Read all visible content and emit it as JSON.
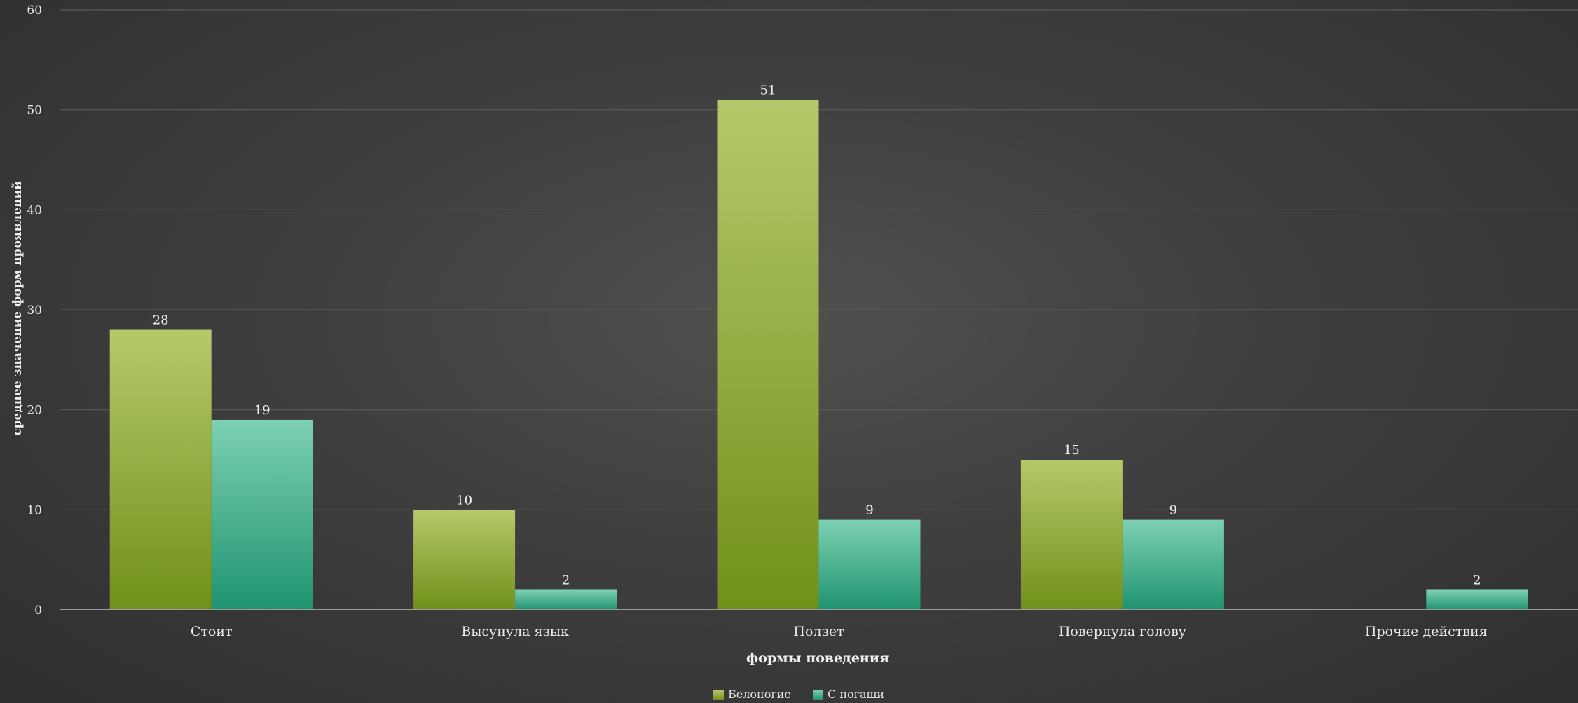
{
  "chart_data": {
    "type": "bar",
    "title": "",
    "xlabel": "формы поведения",
    "ylabel": "среднее значение форм проявлений",
    "categories": [
      "Стоит",
      "Высунула язык",
      "Ползет",
      "Повернула голову",
      "Прочие действия"
    ],
    "series": [
      {
        "name": "Белоногие",
        "values": [
          28,
          10,
          51,
          15,
          null
        ],
        "color": "#8aa428"
      },
      {
        "name": "С погаши",
        "values": [
          19,
          2,
          9,
          9,
          2
        ],
        "color": "#2fa882"
      }
    ],
    "data_labels": [
      [
        "28",
        "10",
        "51",
        "15",
        ""
      ],
      [
        "19",
        "2",
        "9",
        "9",
        "2"
      ]
    ],
    "ylim": [
      0,
      60
    ],
    "yticks": [
      0,
      10,
      20,
      30,
      40,
      50,
      60
    ],
    "grid": true,
    "legend": "bottom"
  }
}
